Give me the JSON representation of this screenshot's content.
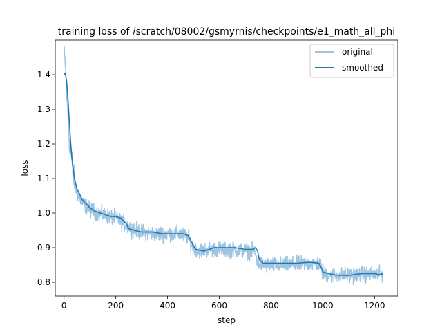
{
  "chart_data": {
    "type": "line",
    "title": "training loss of /scratch/08002/gsmyrnis/checkpoints/e1_math_all_phi",
    "xlabel": "step",
    "ylabel": "loss",
    "xlim": [
      -34,
      1290
    ],
    "ylim": [
      0.76,
      1.5
    ],
    "x_ticks": [
      0,
      200,
      400,
      600,
      800,
      1000,
      1200
    ],
    "x_tick_labels": [
      "0",
      "200",
      "400",
      "600",
      "800",
      "1000",
      "1200"
    ],
    "y_ticks": [
      0.8,
      0.9,
      1.0,
      1.1,
      1.2,
      1.3,
      1.4
    ],
    "y_tick_labels": [
      "0.8",
      "0.9",
      "1.0",
      "1.1",
      "1.2",
      "1.3",
      "1.4"
    ],
    "grid": false,
    "legend_position": "top-right",
    "series": [
      {
        "name": "original",
        "color": "#9ec4e0",
        "noise_amplitude": 0.022,
        "num_steps": 1231,
        "anchors": [
          [
            0,
            1.45
          ],
          [
            5,
            1.43
          ],
          [
            10,
            1.35
          ],
          [
            20,
            1.22
          ],
          [
            30,
            1.15
          ],
          [
            40,
            1.09
          ],
          [
            50,
            1.06
          ],
          [
            70,
            1.03
          ],
          [
            100,
            1.01
          ],
          [
            150,
            0.995
          ],
          [
            200,
            0.985
          ],
          [
            240,
            0.965
          ],
          [
            260,
            0.955
          ],
          [
            300,
            0.945
          ],
          [
            350,
            0.94
          ],
          [
            400,
            0.94
          ],
          [
            450,
            0.94
          ],
          [
            480,
            0.93
          ],
          [
            495,
            0.905
          ],
          [
            520,
            0.89
          ],
          [
            550,
            0.895
          ],
          [
            600,
            0.895
          ],
          [
            650,
            0.895
          ],
          [
            700,
            0.89
          ],
          [
            735,
            0.89
          ],
          [
            750,
            0.855
          ],
          [
            780,
            0.85
          ],
          [
            850,
            0.85
          ],
          [
            900,
            0.852
          ],
          [
            950,
            0.855
          ],
          [
            990,
            0.852
          ],
          [
            1000,
            0.825
          ],
          [
            1030,
            0.82
          ],
          [
            1100,
            0.82
          ],
          [
            1150,
            0.823
          ],
          [
            1200,
            0.823
          ],
          [
            1230,
            0.822
          ]
        ]
      },
      {
        "name": "smoothed",
        "color": "#1f77b4",
        "points": [
          [
            0,
            1.4
          ],
          [
            5,
            1.405
          ],
          [
            10,
            1.38
          ],
          [
            15,
            1.33
          ],
          [
            20,
            1.27
          ],
          [
            25,
            1.21
          ],
          [
            30,
            1.16
          ],
          [
            35,
            1.13
          ],
          [
            40,
            1.1
          ],
          [
            45,
            1.085
          ],
          [
            50,
            1.07
          ],
          [
            60,
            1.055
          ],
          [
            70,
            1.04
          ],
          [
            80,
            1.03
          ],
          [
            90,
            1.025
          ],
          [
            100,
            1.015
          ],
          [
            120,
            1.005
          ],
          [
            140,
            1.0
          ],
          [
            160,
            0.995
          ],
          [
            180,
            0.99
          ],
          [
            200,
            0.99
          ],
          [
            220,
            0.985
          ],
          [
            240,
            0.97
          ],
          [
            250,
            0.955
          ],
          [
            270,
            0.95
          ],
          [
            300,
            0.945
          ],
          [
            340,
            0.945
          ],
          [
            380,
            0.94
          ],
          [
            420,
            0.94
          ],
          [
            460,
            0.94
          ],
          [
            480,
            0.935
          ],
          [
            490,
            0.92
          ],
          [
            500,
            0.905
          ],
          [
            510,
            0.895
          ],
          [
            540,
            0.89
          ],
          [
            580,
            0.9
          ],
          [
            620,
            0.9
          ],
          [
            660,
            0.9
          ],
          [
            700,
            0.895
          ],
          [
            730,
            0.895
          ],
          [
            740,
            0.9
          ],
          [
            748,
            0.89
          ],
          [
            755,
            0.865
          ],
          [
            770,
            0.855
          ],
          [
            800,
            0.855
          ],
          [
            850,
            0.855
          ],
          [
            900,
            0.855
          ],
          [
            950,
            0.858
          ],
          [
            985,
            0.855
          ],
          [
            992,
            0.845
          ],
          [
            1000,
            0.83
          ],
          [
            1020,
            0.825
          ],
          [
            1060,
            0.82
          ],
          [
            1100,
            0.82
          ],
          [
            1150,
            0.825
          ],
          [
            1200,
            0.825
          ],
          [
            1220,
            0.822
          ],
          [
            1232,
            0.825
          ]
        ]
      }
    ]
  }
}
